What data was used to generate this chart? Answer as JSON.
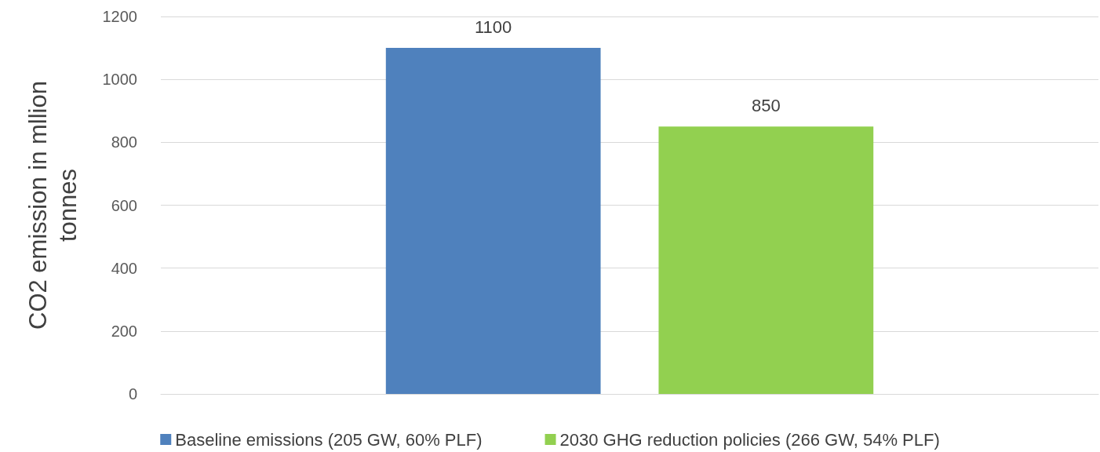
{
  "chart_data": {
    "type": "bar",
    "ylabel": "CO2 emission in mllion tonnes",
    "categories": [
      null
    ],
    "series": [
      {
        "name": "Baseline emissions (205 GW, 60% PLF)",
        "color": "#4f81bd",
        "values": [
          1100
        ]
      },
      {
        "name": "2030 GHG reduction policies (266 GW, 54% PLF)",
        "color": "#92d050",
        "values": [
          850
        ]
      }
    ],
    "ylim": [
      0,
      1200
    ],
    "yticks": [
      0,
      200,
      400,
      600,
      800,
      1000,
      1200
    ],
    "grid": "y",
    "legend": "bottom",
    "data_labels": true
  }
}
